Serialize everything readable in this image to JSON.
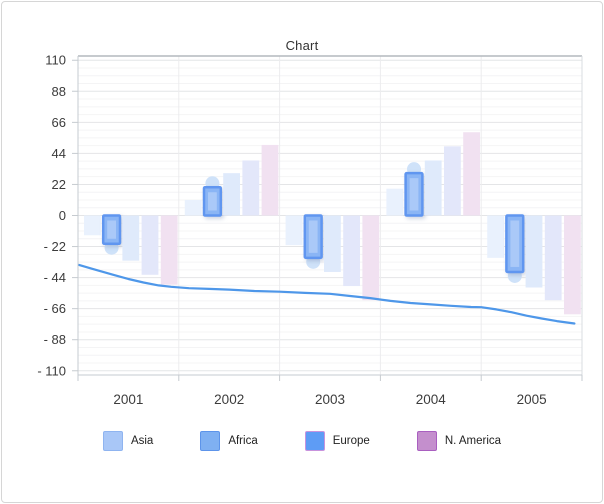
{
  "chart_data": {
    "type": "mixed: grouped floating columns + line",
    "title": "Chart",
    "categories": [
      "2001",
      "2002",
      "2003",
      "2004",
      "2005"
    ],
    "y_axis": {
      "tick_labels": [
        "110",
        "88",
        "66",
        "44",
        "22",
        "0",
        "- 22",
        "- 44",
        "- 66",
        "- 88",
        "- 110"
      ],
      "tick_values": [
        110,
        88,
        66,
        44,
        22,
        0,
        -22,
        -44,
        -66,
        -88,
        -110
      ],
      "range": [
        -113,
        113
      ],
      "grid": "on"
    },
    "bar_series": [
      {
        "name": "Asia",
        "values": [
          -14,
          11,
          -21,
          19,
          -30
        ],
        "fill": "#e9f1fd",
        "legend_entry": true
      },
      {
        "name": "Africa",
        "values": [
          -20,
          20,
          -30,
          30,
          -40
        ],
        "fill": "#8ab5f5",
        "border": "#6096f0",
        "highlighted": true,
        "end_marker_color": "#cfe2f9",
        "legend_entry": true
      },
      {
        "name": "Europe",
        "values": [
          -32,
          30,
          -40,
          39,
          -51
        ],
        "fill": "#dfeafb",
        "legend_entry": true
      },
      {
        "name": "N. America",
        "values": [
          -42,
          39,
          -50,
          49,
          -60
        ],
        "fill": "#e3e7fa",
        "legend_entry": true
      },
      {
        "name": "",
        "values": [
          -49,
          50,
          -60,
          59,
          -70
        ],
        "fill": "#f1e1f1",
        "legend_entry": false
      }
    ],
    "line_series": {
      "name": "",
      "color": "#4e97e9",
      "points": [
        [
          0.002,
          -35
        ],
        [
          0.03,
          -38
        ],
        [
          0.07,
          -42
        ],
        [
          0.1,
          -45
        ],
        [
          0.13,
          -47.5
        ],
        [
          0.16,
          -49.5
        ],
        [
          0.185,
          -50.5
        ],
        [
          0.22,
          -51.5
        ],
        [
          0.26,
          -52
        ],
        [
          0.3,
          -52.5
        ],
        [
          0.35,
          -53.5
        ],
        [
          0.4,
          -54
        ],
        [
          0.45,
          -54.8
        ],
        [
          0.5,
          -55.5
        ],
        [
          0.54,
          -57
        ],
        [
          0.58,
          -58.5
        ],
        [
          0.62,
          -60.5
        ],
        [
          0.66,
          -62
        ],
        [
          0.7,
          -63
        ],
        [
          0.74,
          -64
        ],
        [
          0.78,
          -64.8
        ],
        [
          0.8,
          -65
        ],
        [
          0.83,
          -66.5
        ],
        [
          0.86,
          -68.5
        ],
        [
          0.89,
          -71
        ],
        [
          0.92,
          -73
        ],
        [
          0.95,
          -74.8
        ],
        [
          0.985,
          -76.5
        ]
      ]
    },
    "legend": {
      "position": "bottom",
      "items": [
        {
          "label": "Asia",
          "fill": "#a9c7f7",
          "border": "#8fb4f0"
        },
        {
          "label": "Africa",
          "fill": "#7fb0f2",
          "border": "#5d94ea"
        },
        {
          "label": "Europe",
          "fill": "#5e9cf5",
          "border": "#c893dd"
        },
        {
          "label": "N. America",
          "fill": "#c48fcd",
          "border": "#a95fc0"
        }
      ]
    },
    "colors": {
      "grid_minor": "#f4f4f5",
      "grid_major": "#e4e5e7",
      "grid_vertical": "#ececee",
      "axis_line": "#c6cbd0",
      "plot_border_top": "#b4b9be",
      "plot_border_right": "#dadde0",
      "axis_text": "#3c3c3c"
    }
  }
}
